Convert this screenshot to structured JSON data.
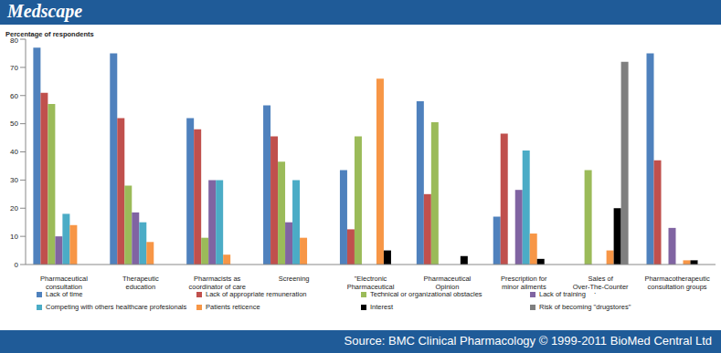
{
  "banner": "Medscape",
  "source": "Source: BMC Clinical Pharmacology © 1999-2011 BioMed Central Ltd",
  "chart_data": {
    "type": "bar",
    "y_label": "Percentage of respondents",
    "categories": [
      "Pharmaceutical consultation",
      "Therapeutic education",
      "Pharmacists as coordinator of care",
      "Screening",
      "\"Electronic Pharmaceutical record\"",
      "Pharmaceutical Opinion",
      "Prescription for minor ailments",
      "Sales of Over-The-Counter drugs",
      "Pharmacotherapeutic consultation groups"
    ],
    "series": [
      {
        "name": "Lack of time",
        "color": "#4f81bd",
        "values": [
          77,
          75,
          52,
          56.5,
          33.5,
          58,
          17,
          null,
          75
        ]
      },
      {
        "name": "Lack of appropriate remuneration",
        "color": "#c0504d",
        "values": [
          61,
          52,
          48,
          45.5,
          12.5,
          25,
          46.5,
          null,
          37
        ]
      },
      {
        "name": "Technical or organizational obstacles",
        "color": "#9bbb59",
        "values": [
          57,
          28,
          9.5,
          36.5,
          45.5,
          50.5,
          null,
          33.5,
          null
        ]
      },
      {
        "name": "Lack of training",
        "color": "#8064a2",
        "values": [
          10,
          18.5,
          30,
          15,
          null,
          null,
          26.5,
          null,
          13
        ]
      },
      {
        "name": "Competing with others healthcare profesionals",
        "color": "#4bacc6",
        "values": [
          18,
          15,
          30,
          30,
          null,
          null,
          40.5,
          null,
          null
        ]
      },
      {
        "name": "Patients reticence",
        "color": "#f79646",
        "values": [
          14,
          8,
          3.5,
          9.5,
          66,
          null,
          11,
          5,
          1.5
        ]
      },
      {
        "name": "Interest",
        "color": "#000000",
        "values": [
          null,
          null,
          null,
          null,
          5,
          3,
          2,
          20,
          1.5
        ]
      },
      {
        "name": "Risk of becoming \"drugstores\"",
        "color": "#7f7f7f",
        "values": [
          null,
          null,
          null,
          null,
          null,
          null,
          null,
          72,
          null
        ]
      }
    ],
    "ylim": [
      0,
      80
    ],
    "yticks": [
      0,
      10,
      20,
      30,
      40,
      50,
      60,
      70,
      80
    ],
    "grid": false,
    "legend": "bottom"
  }
}
